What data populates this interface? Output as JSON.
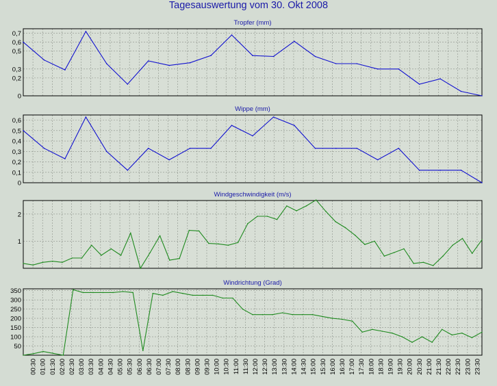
{
  "title": "Tagesauswertung vom 30. Okt 2008",
  "time_labels": [
    "00:30",
    "01:00",
    "01:30",
    "02:00",
    "02:30",
    "03:00",
    "03:30",
    "04:00",
    "04:30",
    "05:00",
    "05:30",
    "06:00",
    "06:30",
    "07:00",
    "07:30",
    "08:00",
    "08:30",
    "09:00",
    "09:30",
    "10:00",
    "10:30",
    "11:00",
    "11:30",
    "12:00",
    "12:30",
    "13:00",
    "13:30",
    "14:00",
    "14:30",
    "15:00",
    "15:30",
    "16:00",
    "16:30",
    "17:00",
    "17:30",
    "18:00",
    "18:30",
    "19:00",
    "19:30",
    "20:00",
    "20:30",
    "21:00",
    "21:30",
    "22:00",
    "22:30",
    "23:00",
    "23:30"
  ],
  "colors": {
    "background": "#d4dcd3",
    "plot_background": "#d8dfd6",
    "grid": "#8a9088",
    "title": "#1a1aa8",
    "blue_series": "#1010d0",
    "green_series": "#1f8a1f"
  },
  "chart_data": [
    {
      "type": "line",
      "title": "Tropfer (mm)",
      "ylim": [
        0,
        0.75
      ],
      "yticks": [
        0,
        0.2,
        0.3,
        0.5,
        0.6,
        0.7
      ],
      "ytick_labels": [
        "0",
        "0,2",
        "0,3",
        "0,5",
        "0,6",
        "0,7"
      ],
      "color": "#1010d0",
      "values": [
        0.6,
        0.4,
        0.29,
        0.72,
        0.36,
        0.13,
        0.39,
        0.34,
        0.37,
        0.45,
        0.68,
        0.45,
        0.44,
        0.61,
        0.44,
        0.36,
        0.36,
        0.3,
        0.3,
        0.13,
        0.19,
        0.05,
        0.0
      ]
    },
    {
      "type": "line",
      "title": "Wippe (mm)",
      "ylim": [
        0,
        0.65
      ],
      "yticks": [
        0,
        0.1,
        0.2,
        0.3,
        0.4,
        0.5,
        0.6
      ],
      "ytick_labels": [
        "0",
        "0,1",
        "0,2",
        "0,3",
        "0,4",
        "0,5",
        "0,6"
      ],
      "color": "#1010d0",
      "values": [
        0.5,
        0.33,
        0.23,
        0.63,
        0.3,
        0.12,
        0.33,
        0.22,
        0.33,
        0.33,
        0.55,
        0.45,
        0.63,
        0.55,
        0.33,
        0.33,
        0.33,
        0.22,
        0.33,
        0.12,
        0.12,
        0.12,
        0.0
      ]
    },
    {
      "type": "line",
      "title": "Windgeschwindigkeit (m/s)",
      "ylim": [
        0,
        2.5
      ],
      "yticks": [
        1,
        2
      ],
      "ytick_labels": [
        "1",
        "2"
      ],
      "color": "#1f8a1f",
      "values": [
        0.18,
        0.12,
        0.22,
        0.26,
        0.22,
        0.38,
        0.38,
        0.85,
        0.48,
        0.72,
        0.48,
        1.3,
        0.0,
        0.58,
        1.2,
        0.3,
        0.36,
        1.4,
        1.38,
        0.92,
        0.9,
        0.85,
        0.95,
        1.65,
        1.92,
        1.92,
        1.8,
        2.3,
        2.12,
        2.3,
        2.52,
        2.1,
        1.72,
        1.5,
        1.22,
        0.88,
        1.0,
        0.45,
        0.58,
        0.72,
        0.18,
        0.22,
        0.1,
        0.45,
        0.85,
        1.1,
        0.55,
        1.05
      ]
    },
    {
      "type": "line",
      "title": "Windrichtung (Grad)",
      "ylim": [
        0,
        360
      ],
      "yticks": [
        50,
        100,
        150,
        200,
        250,
        300,
        350
      ],
      "ytick_labels": [
        "50",
        "100",
        "150",
        "200",
        "250",
        "300",
        "350"
      ],
      "color": "#1f8a1f",
      "values": [
        0,
        8,
        20,
        10,
        0,
        355,
        340,
        340,
        340,
        340,
        345,
        340,
        25,
        335,
        325,
        345,
        335,
        325,
        325,
        325,
        310,
        310,
        250,
        220,
        220,
        220,
        230,
        220,
        220,
        220,
        210,
        200,
        195,
        185,
        125,
        140,
        130,
        120,
        100,
        70,
        100,
        70,
        140,
        110,
        120,
        95,
        125
      ]
    }
  ]
}
